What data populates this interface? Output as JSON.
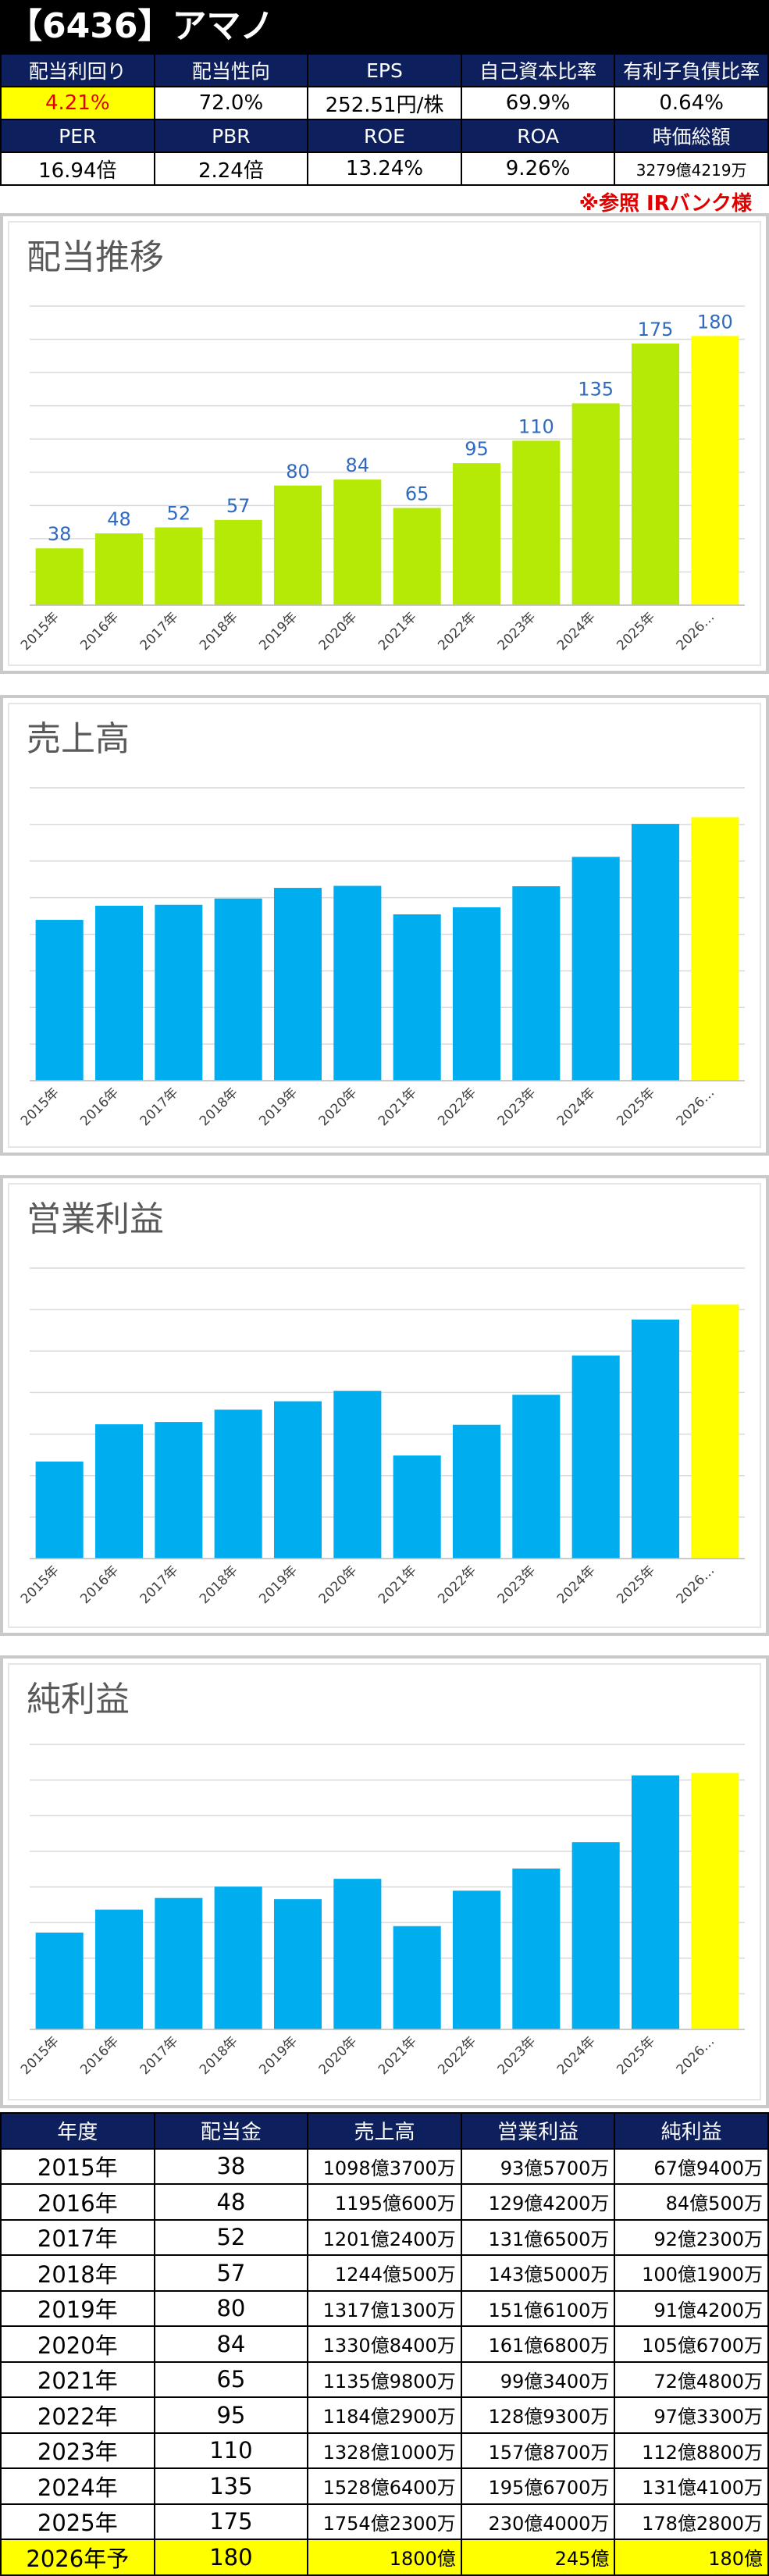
{
  "header": {
    "title": "【6436】アマノ"
  },
  "metrics_row1": {
    "labels": [
      "配当利回り",
      "配当性向",
      "EPS",
      "自己資本比率",
      "有利子負債比率"
    ],
    "values": [
      "4.21%",
      "72.0%",
      "252.51円/株",
      "69.9%",
      "0.64%"
    ]
  },
  "metrics_row2": {
    "labels": [
      "PER",
      "PBR",
      "ROE",
      "ROA",
      "時価総額"
    ],
    "values": [
      "16.94倍",
      "2.24倍",
      "13.24%",
      "9.26%",
      "3279億4219万"
    ]
  },
  "note": "※参照 IRバンク様",
  "colors": {
    "dividend_bar": "#b5ea06",
    "bar": "#00aeef",
    "forecast": "#ffff00",
    "header_bg": "#0d1f5c"
  },
  "chart_data": [
    {
      "type": "bar",
      "title": "配当推移",
      "categories": [
        "2015年",
        "2016年",
        "2017年",
        "2018年",
        "2019年",
        "2020年",
        "2021年",
        "2022年",
        "2023年",
        "2024年",
        "2025年",
        "2026…"
      ],
      "values": [
        38,
        48,
        52,
        57,
        80,
        84,
        65,
        95,
        110,
        135,
        175,
        180
      ],
      "data_labels": [
        "38",
        "48",
        "52",
        "57",
        "80",
        "84",
        "65",
        "95",
        "110",
        "135",
        "175",
        "180"
      ],
      "ylim": [
        0,
        200
      ],
      "grid": true
    },
    {
      "type": "bar",
      "title": "売上高",
      "categories": [
        "2015年",
        "2016年",
        "2017年",
        "2018年",
        "2019年",
        "2020年",
        "2021年",
        "2022年",
        "2023年",
        "2024年",
        "2025年",
        "2026…"
      ],
      "values": [
        1098.37,
        1195.06,
        1201.24,
        1244.05,
        1317.13,
        1330.84,
        1135.98,
        1184.29,
        1328.1,
        1528.64,
        1754.23,
        1800
      ],
      "ylim": [
        0,
        2000
      ],
      "grid": true
    },
    {
      "type": "bar",
      "title": "営業利益",
      "categories": [
        "2015年",
        "2016年",
        "2017年",
        "2018年",
        "2019年",
        "2020年",
        "2021年",
        "2022年",
        "2023年",
        "2024年",
        "2025年",
        "2026…"
      ],
      "values": [
        93.57,
        129.42,
        131.65,
        143.5,
        151.61,
        161.68,
        99.34,
        128.93,
        157.87,
        195.67,
        230.4,
        245
      ],
      "ylim": [
        0,
        280
      ],
      "grid": true
    },
    {
      "type": "bar",
      "title": "純利益",
      "categories": [
        "2015年",
        "2016年",
        "2017年",
        "2018年",
        "2019年",
        "2020年",
        "2021年",
        "2022年",
        "2023年",
        "2024年",
        "2025年",
        "2026…"
      ],
      "values": [
        67.94,
        84.05,
        92.23,
        100.19,
        91.42,
        105.67,
        72.48,
        97.33,
        112.88,
        131.41,
        178.28,
        180
      ],
      "ylim": [
        0,
        200
      ],
      "grid": true
    }
  ],
  "table": {
    "headers": [
      "年度",
      "配当金",
      "売上高",
      "営業利益",
      "純利益"
    ],
    "rows": [
      [
        "2015年",
        "38",
        "1098億3700万",
        "93億5700万",
        "67億9400万"
      ],
      [
        "2016年",
        "48",
        "1195億600万",
        "129億4200万",
        "84億500万"
      ],
      [
        "2017年",
        "52",
        "1201億2400万",
        "131億6500万",
        "92億2300万"
      ],
      [
        "2018年",
        "57",
        "1244億500万",
        "143億5000万",
        "100億1900万"
      ],
      [
        "2019年",
        "80",
        "1317億1300万",
        "151億6100万",
        "91億4200万"
      ],
      [
        "2020年",
        "84",
        "1330億8400万",
        "161億6800万",
        "105億6700万"
      ],
      [
        "2021年",
        "65",
        "1135億9800万",
        "99億3400万",
        "72億4800万"
      ],
      [
        "2022年",
        "95",
        "1184億2900万",
        "128億9300万",
        "97億3300万"
      ],
      [
        "2023年",
        "110",
        "1328億1000万",
        "157億8700万",
        "112億8800万"
      ],
      [
        "2024年",
        "135",
        "1528億6400万",
        "195億6700万",
        "131億4100万"
      ],
      [
        "2025年",
        "175",
        "1754億2300万",
        "230億4000万",
        "178億2800万"
      ],
      [
        "2026年予",
        "180",
        "1800億",
        "245億",
        "180億"
      ]
    ]
  }
}
